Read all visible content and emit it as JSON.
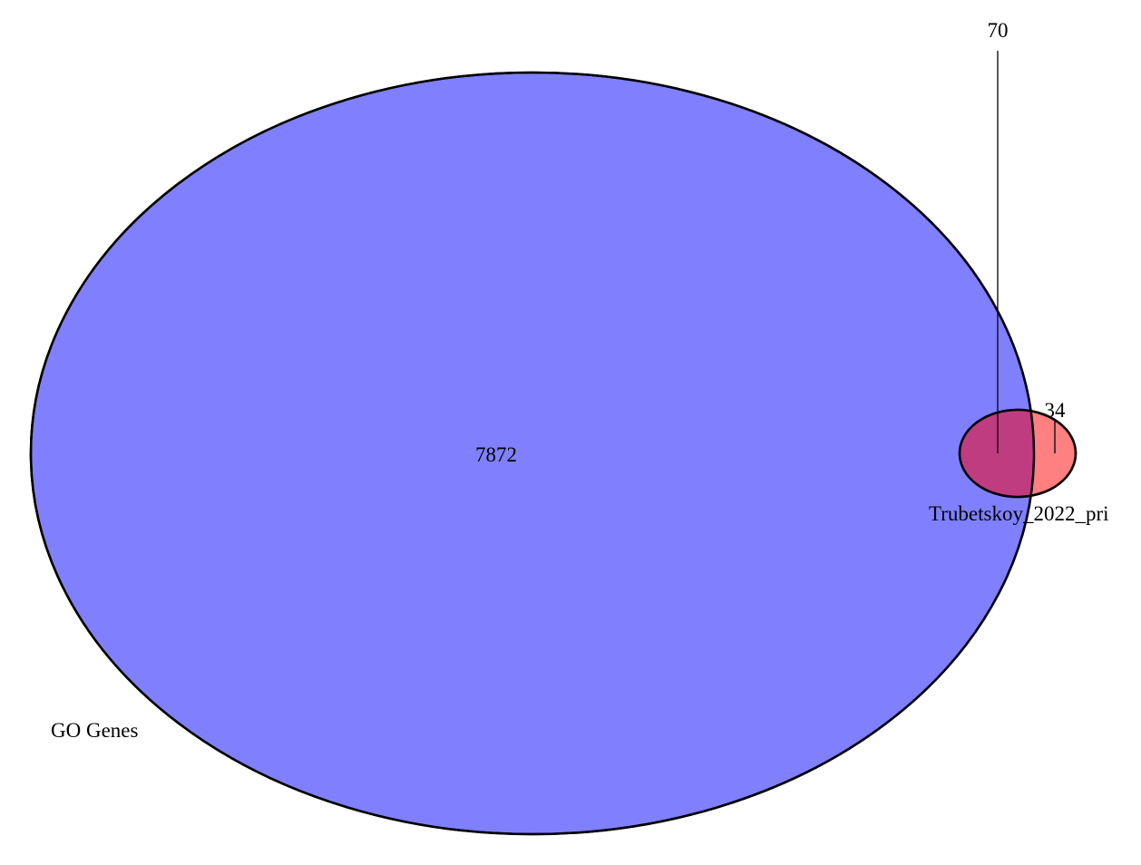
{
  "chart_data": {
    "type": "venn",
    "sets": [
      {
        "name": "GO Genes",
        "color": "#8080ff"
      },
      {
        "name": "Trubetskoy_2022_pri",
        "color": "#ff8080"
      }
    ],
    "regions": {
      "go_only": 7872,
      "overlap": 70,
      "trubetskoy_only": 34
    },
    "overlap_color": "#c03c80",
    "outline_color": "#000000"
  }
}
